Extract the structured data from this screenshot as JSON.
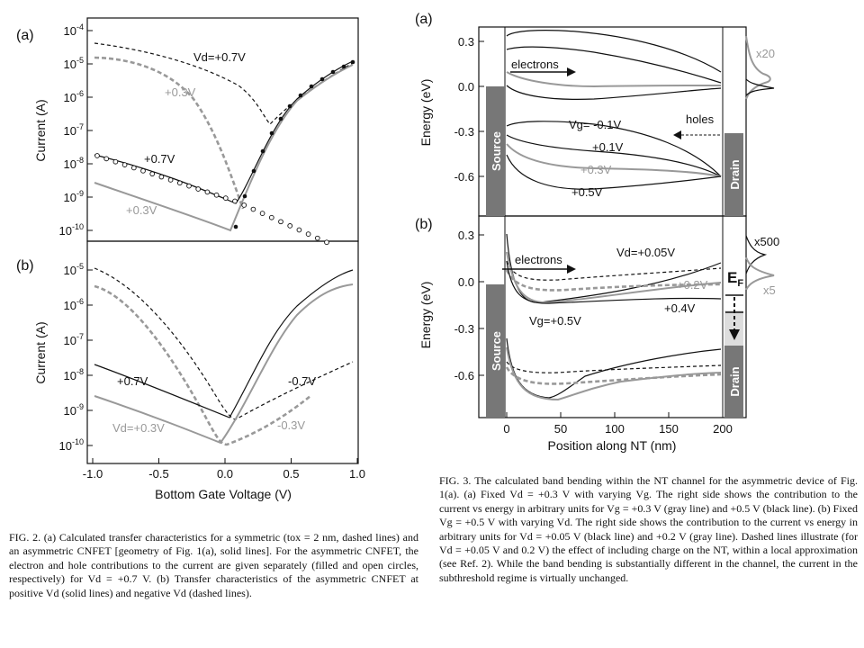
{
  "fig2": {
    "panel_a": "(a)",
    "panel_b": "(b)",
    "ylabel": "Current (A)",
    "xlabel": "Bottom Gate Voltage (V)",
    "yticks_a": [
      "10-4",
      "10-5",
      "10-6",
      "10-7",
      "10-8",
      "10-9",
      "10-10"
    ],
    "yticks_b": [
      "10-5",
      "10-6",
      "10-7",
      "10-8",
      "10-9",
      "10-10"
    ],
    "xticks": [
      "-1.0",
      "-0.5",
      "0.0",
      "0.5",
      "1.0"
    ],
    "a_labels": {
      "vd07": "Vd=+0.7V",
      "g03": "+0.3V",
      "b07": "+0.7V",
      "s03": "+0.3V"
    },
    "b_labels": {
      "p07": "+0.7V",
      "m07": "-0.7V",
      "vd03": "Vd=+0.3V",
      "m03": "-0.3V"
    }
  },
  "fig3": {
    "panel_a": "(a)",
    "panel_b": "(b)",
    "ylabel": "Energy (eV)",
    "xlabel": "Position along NT (nm)",
    "yticks_a": [
      "0.3",
      "0.0",
      "-0.3",
      "-0.6"
    ],
    "yticks_b": [
      "0.3",
      "0.0",
      "-0.3",
      "-0.6"
    ],
    "xticks": [
      "0",
      "50",
      "100",
      "150",
      "200"
    ],
    "source": "Source",
    "drain": "Drain",
    "a_labels": {
      "electrons": "electrons",
      "holes": "holes",
      "vg1": "Vg= -0.1V",
      "vg2": "+0.1V",
      "vg3": "+0.3V",
      "vg4": "+0.5V",
      "x20": "x20"
    },
    "b_labels": {
      "electrons": "electrons",
      "vd1": "Vd=+0.05V",
      "vd2": "+0.2V",
      "vd3": "+0.4V",
      "vg": "Vg=+0.5V",
      "x500": "x500",
      "x5": "x5",
      "ef": "E",
      "ef_sub": "F"
    }
  },
  "captions": {
    "fig2": "FIG. 2. (a) Calculated transfer characteristics for a symmetric (tox = 2 nm, dashed lines) and an asymmetric CNFET [geometry of Fig. 1(a), solid lines]. For the asymmetric CNFET, the electron and hole contributions to the current are given separately (filled and open circles, respectively) for Vd = +0.7 V. (b) Transfer characteristics of the asymmetric CNFET at positive Vd (solid lines) and negative Vd (dashed lines).",
    "fig3": "FIG. 3. The calculated band bending within the NT channel for the asymmetric device of Fig. 1(a). (a) Fixed Vd = +0.3 V with varying Vg. The right side shows the contribution to the current vs energy in arbitrary units for Vg = +0.3 V (gray line) and +0.5 V (black line). (b) Fixed Vg = +0.5 V with varying Vd. The right side shows the contribution to the current vs energy in arbitrary units for Vd = +0.05 V (black line) and +0.2 V (gray line). Dashed lines illustrate (for Vd = +0.05 V and 0.2 V) the effect of including charge on the NT, within a local approximation (see Ref. 2). While the band bending is substantially different in the channel, the current in the subthreshold regime is virtually unchanged."
  }
}
